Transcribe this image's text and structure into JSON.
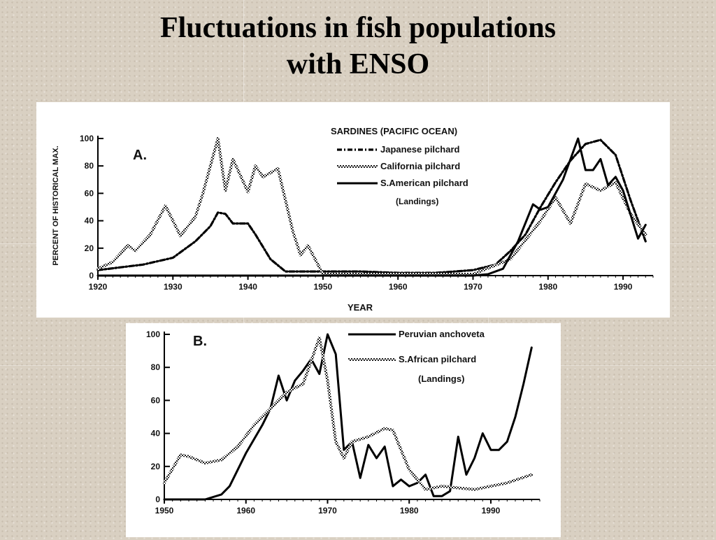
{
  "slide": {
    "title_line1": "Fluctuations in fish populations",
    "title_line2": "with ENSO"
  },
  "chart_data": [
    {
      "type": "line",
      "panel_label": "A.",
      "legend_title": "SARDINES (PACIFIC OCEAN)",
      "legend_note": "(Landings)",
      "xlabel": "YEAR",
      "ylabel": "PERCENT OF HISTORICAL MAX.",
      "xlim": [
        1920,
        1994
      ],
      "ylim": [
        0,
        100
      ],
      "xticks": [
        1920,
        1930,
        1940,
        1950,
        1960,
        1970,
        1980,
        1990
      ],
      "yticks": [
        0,
        20,
        40,
        60,
        80,
        100
      ],
      "series": [
        {
          "name": "Japanese pilchard",
          "style": "dash-dot",
          "x": [
            1920,
            1923,
            1926,
            1930,
            1933,
            1935,
            1936,
            1937,
            1938,
            1940,
            1941,
            1943,
            1945,
            1950,
            1955,
            1960,
            1965,
            1970,
            1973,
            1975,
            1977,
            1979,
            1981,
            1983,
            1985,
            1987,
            1989,
            1991,
            1993
          ],
          "y": [
            4,
            6,
            8,
            13,
            25,
            36,
            46,
            45,
            38,
            38,
            30,
            12,
            3,
            3,
            3,
            2,
            2,
            4,
            8,
            18,
            30,
            50,
            68,
            84,
            96,
            99,
            88,
            55,
            25
          ]
        },
        {
          "name": "California pilchard",
          "style": "textured",
          "x": [
            1920,
            1922,
            1924,
            1925,
            1927,
            1929,
            1931,
            1933,
            1934,
            1935,
            1936,
            1937,
            1938,
            1940,
            1941,
            1942,
            1944,
            1946,
            1947,
            1948,
            1950,
            1955,
            1960,
            1965,
            1970,
            1975,
            1979,
            1981,
            1983,
            1985,
            1987,
            1989,
            1991,
            1993
          ],
          "y": [
            5,
            10,
            22,
            18,
            30,
            51,
            29,
            43,
            60,
            80,
            100,
            62,
            85,
            61,
            80,
            72,
            78,
            32,
            15,
            22,
            1,
            1,
            1,
            1,
            1,
            12,
            40,
            57,
            38,
            67,
            62,
            68,
            45,
            30
          ]
        },
        {
          "name": "S.American pilchard",
          "style": "solid",
          "x": [
            1920,
            1950,
            1955,
            1960,
            1965,
            1970,
            1972,
            1974,
            1976,
            1978,
            1979,
            1980,
            1982,
            1984,
            1985,
            1986,
            1987,
            1988,
            1989,
            1990,
            1992,
            1993
          ],
          "y": [
            0,
            0,
            0,
            0,
            0,
            0,
            1,
            5,
            25,
            52,
            48,
            50,
            70,
            100,
            77,
            77,
            85,
            66,
            72,
            62,
            27,
            37
          ]
        }
      ]
    },
    {
      "type": "line",
      "panel_label": "B.",
      "legend_note": "(Landings)",
      "xlim": [
        1950,
        1996
      ],
      "ylim": [
        0,
        100
      ],
      "xticks": [
        1950,
        1960,
        1970,
        1980,
        1990
      ],
      "yticks": [
        0,
        20,
        40,
        60,
        80,
        100
      ],
      "series": [
        {
          "name": "Peruvian anchoveta",
          "style": "solid",
          "x": [
            1950,
            1953,
            1955,
            1957,
            1958,
            1960,
            1962,
            1963,
            1964,
            1965,
            1966,
            1967,
            1968,
            1969,
            1970,
            1971,
            1972,
            1973,
            1974,
            1975,
            1976,
            1977,
            1978,
            1979,
            1980,
            1981,
            1982,
            1983,
            1984,
            1985,
            1986,
            1987,
            1988,
            1989,
            1990,
            1991,
            1992,
            1993,
            1994,
            1995
          ],
          "y": [
            0,
            0,
            0,
            3,
            8,
            28,
            45,
            55,
            75,
            60,
            72,
            78,
            85,
            76,
            100,
            88,
            30,
            35,
            13,
            33,
            25,
            32,
            8,
            12,
            8,
            10,
            15,
            2,
            2,
            5,
            38,
            15,
            25,
            40,
            30,
            30,
            35,
            50,
            70,
            92
          ]
        },
        {
          "name": "S.African pilchard",
          "style": "textured",
          "x": [
            1950,
            1952,
            1953,
            1955,
            1957,
            1959,
            1961,
            1963,
            1965,
            1967,
            1969,
            1970,
            1971,
            1972,
            1973,
            1975,
            1977,
            1978,
            1980,
            1982,
            1984,
            1986,
            1988,
            1990,
            1992,
            1995
          ],
          "y": [
            10,
            27,
            26,
            22,
            24,
            32,
            45,
            55,
            65,
            70,
            98,
            72,
            35,
            25,
            35,
            38,
            43,
            42,
            18,
            6,
            8,
            7,
            6,
            8,
            10,
            15
          ]
        }
      ]
    }
  ]
}
